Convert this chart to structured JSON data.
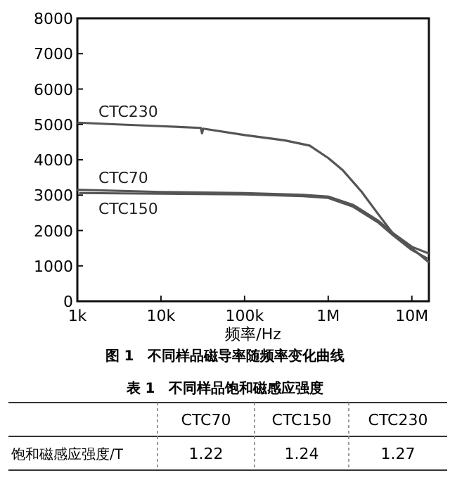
{
  "chart_data": [
    {
      "type": "line",
      "title": "图 1　不同样品磁导率随频率变化曲线",
      "xlabel": "频率/Hz",
      "log": "x",
      "xlim": [
        1000,
        16000000
      ],
      "xticks": [
        {
          "value": 1000,
          "label": "1k"
        },
        {
          "value": 10000,
          "label": "10k"
        },
        {
          "value": 100000,
          "label": "100k"
        },
        {
          "value": 1000000,
          "label": "1M"
        },
        {
          "value": 10000000,
          "label": "10M"
        }
      ],
      "ylim": [
        0,
        8000
      ],
      "yticks": [
        0,
        1000,
        2000,
        3000,
        4000,
        5000,
        6000,
        7000,
        8000
      ],
      "grid": false,
      "marker": "none",
      "line_style": "solid",
      "series": [
        {
          "name": "CTC230",
          "color": "#555555",
          "x": [
            1000,
            3000,
            10000,
            30000,
            31000,
            32000,
            100000,
            300000,
            600000,
            1000000,
            1500000,
            2500000,
            4000000,
            6000000,
            10000000,
            16000000
          ],
          "values": [
            5050,
            5000,
            4950,
            4900,
            4750,
            4880,
            4700,
            4550,
            4400,
            4050,
            3700,
            3100,
            2450,
            1900,
            1500,
            1100
          ]
        },
        {
          "name": "CTC70",
          "color": "#555555",
          "x": [
            1000,
            10000,
            100000,
            500000,
            1000000,
            2000000,
            4000000,
            6000000,
            10000000,
            16000000
          ],
          "values": [
            3150,
            3090,
            3060,
            3010,
            2960,
            2720,
            2270,
            1920,
            1540,
            1350
          ]
        },
        {
          "name": "CTC150",
          "color": "#555555",
          "x": [
            1050,
            10000,
            100000,
            500000,
            1000000,
            2000000,
            4000000,
            6000000,
            10000000,
            15500000
          ],
          "values": [
            3060,
            3040,
            3020,
            2970,
            2920,
            2670,
            2220,
            1860,
            1450,
            1200
          ]
        }
      ]
    },
    {
      "type": "other",
      "title": "表 1　不同样品饱和磁感应强度",
      "categories": [
        "CTC70",
        "CTC150",
        "CTC230"
      ],
      "ylabel": "饱和磁感应强度/T",
      "values": [
        1.22,
        1.24,
        1.27
      ],
      "data_labels": true
    }
  ]
}
